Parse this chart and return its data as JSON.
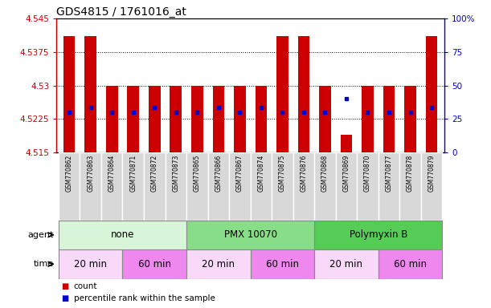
{
  "title": "GDS4815 / 1761016_at",
  "samples": [
    "GSM770862",
    "GSM770863",
    "GSM770864",
    "GSM770871",
    "GSM770872",
    "GSM770873",
    "GSM770865",
    "GSM770866",
    "GSM770867",
    "GSM770874",
    "GSM770875",
    "GSM770876",
    "GSM770868",
    "GSM770869",
    "GSM770870",
    "GSM770877",
    "GSM770878",
    "GSM770879"
  ],
  "bar_tops": [
    4.541,
    4.541,
    4.53,
    4.53,
    4.53,
    4.53,
    4.53,
    4.53,
    4.53,
    4.53,
    4.541,
    4.541,
    4.53,
    4.519,
    4.53,
    4.53,
    4.53,
    4.541
  ],
  "bar_bottoms": [
    4.515,
    4.515,
    4.515,
    4.515,
    4.515,
    4.515,
    4.515,
    4.515,
    4.515,
    4.515,
    4.515,
    4.515,
    4.515,
    4.515,
    4.515,
    4.515,
    4.515,
    4.515
  ],
  "blue_dot_y": [
    4.524,
    4.525,
    4.524,
    4.524,
    4.525,
    4.524,
    4.524,
    4.525,
    4.524,
    4.525,
    4.524,
    4.524,
    4.524,
    4.527,
    4.524,
    4.524,
    4.524,
    4.525
  ],
  "ymin": 4.515,
  "ymax": 4.545,
  "yticks": [
    4.515,
    4.5225,
    4.53,
    4.5375,
    4.545
  ],
  "ytick_labels": [
    "4.515",
    "4.5225",
    "4.53",
    "4.5375",
    "4.545"
  ],
  "y2ticks": [
    0,
    25,
    50,
    75,
    100
  ],
  "y2tick_labels": [
    "0",
    "25",
    "50",
    "75",
    "100%"
  ],
  "bar_color": "#cc0000",
  "dot_color": "#0000cc",
  "left_tick_color": "#cc0000",
  "right_tick_color": "#0000cc",
  "groups": [
    {
      "label": "none",
      "start": 0,
      "end": 6,
      "color": "#d9f5d9"
    },
    {
      "label": "PMX 10070",
      "start": 6,
      "end": 12,
      "color": "#88dd88"
    },
    {
      "label": "Polymyxin B",
      "start": 12,
      "end": 18,
      "color": "#55cc55"
    }
  ],
  "time_groups": [
    {
      "label": "20 min",
      "start": 0,
      "end": 3,
      "color": "#f9d9f9"
    },
    {
      "label": "60 min",
      "start": 3,
      "end": 6,
      "color": "#ee88ee"
    },
    {
      "label": "20 min",
      "start": 6,
      "end": 9,
      "color": "#f9d9f9"
    },
    {
      "label": "60 min",
      "start": 9,
      "end": 12,
      "color": "#ee88ee"
    },
    {
      "label": "20 min",
      "start": 12,
      "end": 15,
      "color": "#f9d9f9"
    },
    {
      "label": "60 min",
      "start": 15,
      "end": 18,
      "color": "#ee88ee"
    }
  ],
  "legend_count_color": "#cc0000",
  "legend_dot_color": "#0000cc",
  "agent_label": "agent",
  "time_label": "time",
  "legend_count": "count",
  "legend_pct": "percentile rank within the sample",
  "sample_box_color": "#d8d8d8",
  "gridline_color": "#000000",
  "gridline_style": ":",
  "bar_width": 0.55
}
